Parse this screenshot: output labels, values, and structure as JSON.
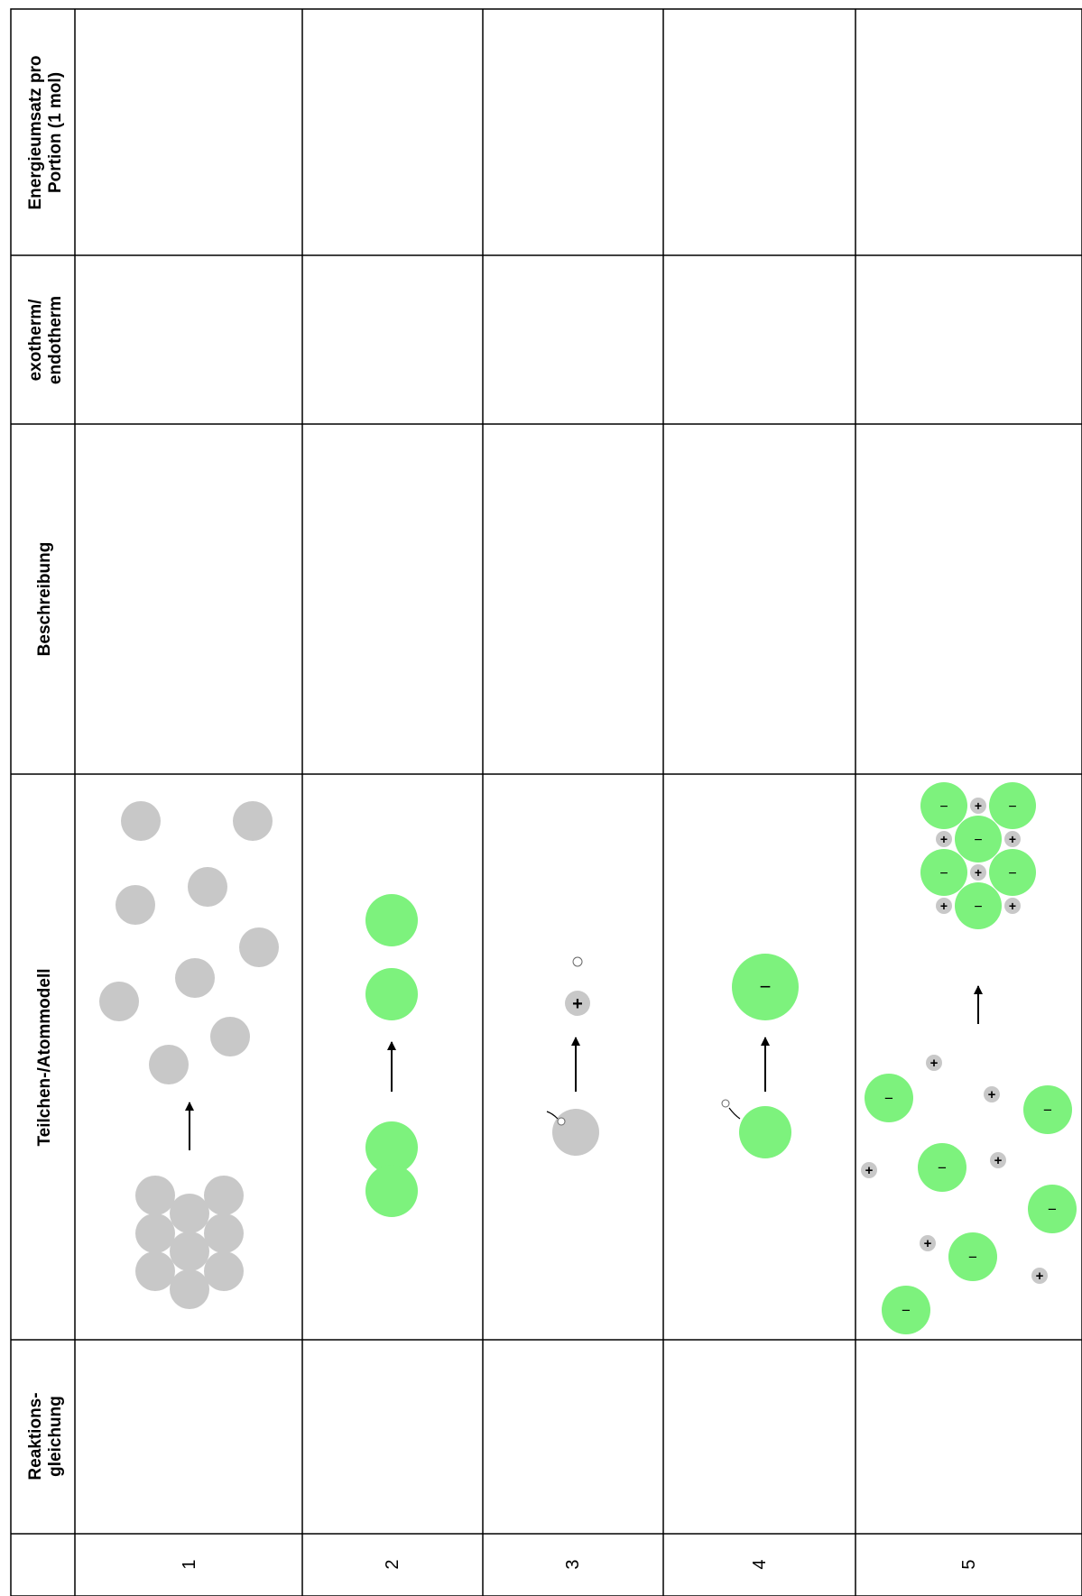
{
  "colors": {
    "border": "#000000",
    "gray_particle": "#c8c8c8",
    "green_particle": "#7df27d",
    "background": "#ffffff"
  },
  "headers": {
    "reaktion_line1": "Reaktions-",
    "reaktion_line2": "gleichung",
    "modell": "Teilchen-/Atommodell",
    "beschreibung": "Beschreibung",
    "exo_line1": "exotherm/",
    "exo_line2": "endotherm",
    "energie_line1": "Energieumsatz pro",
    "energie_line2": "Portion (1 mol)"
  },
  "rows": [
    {
      "number": "1"
    },
    {
      "number": "2"
    },
    {
      "number": "3"
    },
    {
      "number": "4"
    },
    {
      "number": "5"
    }
  ],
  "symbols": {
    "plus": "+",
    "minus": "−",
    "electron": "e"
  }
}
